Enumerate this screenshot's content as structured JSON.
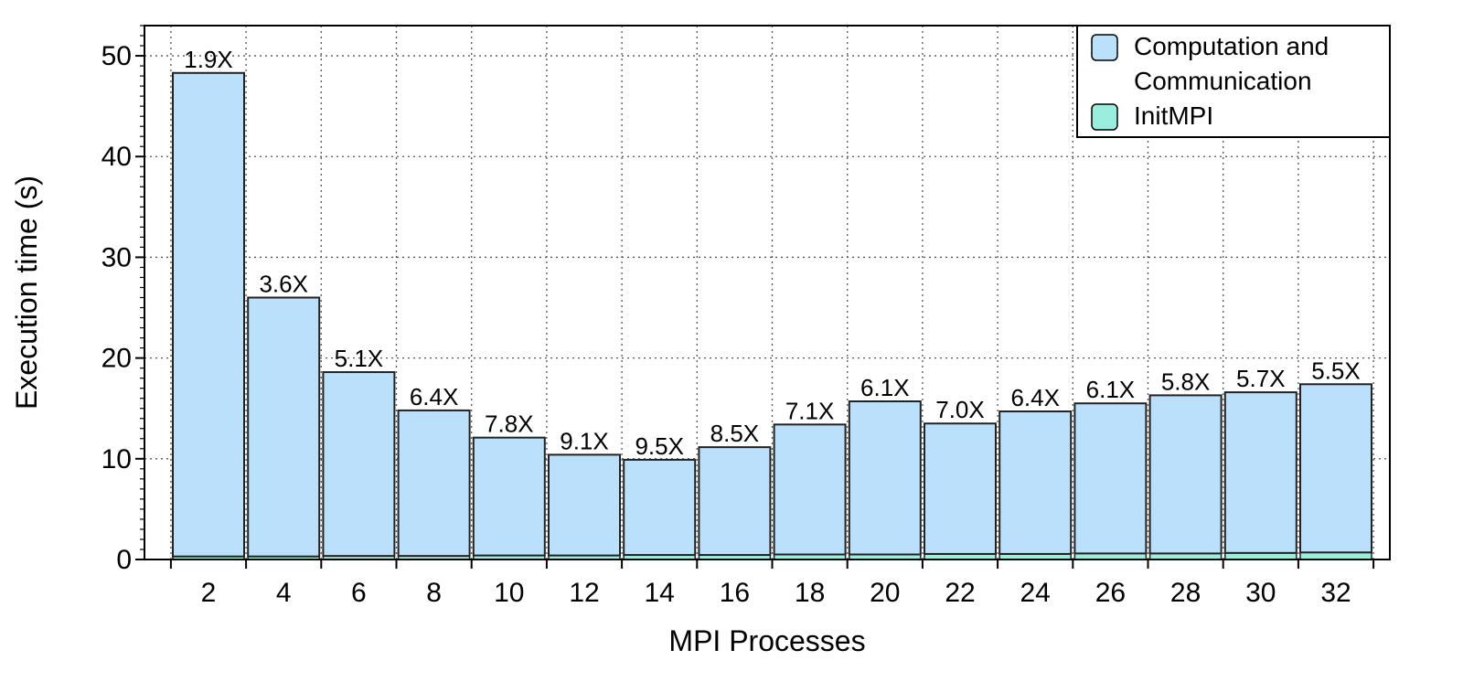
{
  "chart_data": {
    "type": "bar",
    "stacked": true,
    "xlabel": "MPI Processes",
    "ylabel": "Execution time (s)",
    "ylim": [
      0,
      53
    ],
    "yticks": [
      0,
      10,
      20,
      30,
      40,
      50
    ],
    "grid": true,
    "legend_position": "top-right",
    "categories": [
      "2",
      "4",
      "6",
      "8",
      "10",
      "12",
      "14",
      "16",
      "18",
      "20",
      "22",
      "24",
      "26",
      "28",
      "30",
      "32"
    ],
    "series": [
      {
        "name": "InitMPI",
        "color": "#99eedd",
        "values": [
          0.3,
          0.3,
          0.35,
          0.35,
          0.4,
          0.4,
          0.45,
          0.45,
          0.5,
          0.5,
          0.55,
          0.55,
          0.6,
          0.6,
          0.65,
          0.7
        ]
      },
      {
        "name": "Computation and Communication",
        "color": "#bbe0fc",
        "values": [
          48.0,
          25.7,
          18.25,
          14.45,
          11.7,
          10.0,
          9.45,
          10.7,
          12.9,
          15.2,
          12.95,
          14.15,
          14.9,
          15.7,
          15.95,
          16.7
        ]
      }
    ],
    "legend": {
      "entries": [
        {
          "lines": [
            "Computation and",
            "Communication"
          ],
          "color": "#bbe0fc"
        },
        {
          "lines": [
            "InitMPI"
          ],
          "color": "#99eedd"
        }
      ]
    },
    "bar_labels": [
      "1.9X",
      "3.6X",
      "5.1X",
      "6.4X",
      "7.8X",
      "9.1X",
      "9.5X",
      "8.5X",
      "7.1X",
      "6.1X",
      "7.0X",
      "6.4X",
      "6.1X",
      "5.8X",
      "5.7X",
      "5.5X"
    ]
  }
}
